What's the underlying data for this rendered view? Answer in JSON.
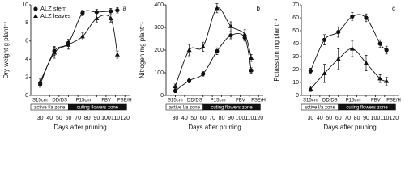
{
  "chart_data": [
    {
      "type": "line",
      "panel_label": "a",
      "y_label": "Dry weight g plant⁻¹",
      "x_label": "Days after pruning",
      "x": [
        30,
        45,
        60,
        75,
        90,
        105,
        112
      ],
      "xlim": [
        20,
        125
      ],
      "xticks": [
        30,
        40,
        50,
        60,
        70,
        80,
        90,
        100,
        110,
        120
      ],
      "ylim": [
        0,
        10
      ],
      "yticks": [
        0,
        2,
        4,
        6,
        8,
        10
      ],
      "legend": "upper left",
      "stages": [
        "S15cm",
        "DD/DS",
        "P15cm",
        "FBV",
        "FSE/H"
      ],
      "zones": [
        "active l/a zone",
        "cuting flowers zone"
      ],
      "series": [
        {
          "name": "ALZ stem",
          "marker": "circle",
          "color": "#111111",
          "values": [
            1.2,
            4.9,
            5.8,
            9.1,
            9.2,
            9.3,
            9.4
          ],
          "errors": [
            0.3,
            0.5,
            0.4,
            0.3,
            0.3,
            0.3,
            0.3
          ]
        },
        {
          "name": "ALZ leaves",
          "marker": "triangle",
          "color": "#111111",
          "values": [
            1.5,
            4.7,
            5.6,
            6.5,
            8.5,
            8.5,
            4.5
          ],
          "errors": [
            0.3,
            0.6,
            0.5,
            0.4,
            0.4,
            0.4,
            0.4
          ]
        }
      ]
    },
    {
      "type": "line",
      "panel_label": "b",
      "y_label": "Nitrogen mg plant⁻¹",
      "x_label": "Days after pruning",
      "x": [
        30,
        45,
        60,
        75,
        90,
        105,
        112
      ],
      "xlim": [
        20,
        125
      ],
      "xticks": [
        30,
        40,
        50,
        60,
        70,
        80,
        90,
        100,
        110,
        120
      ],
      "ylim": [
        0,
        400
      ],
      "yticks": [
        0,
        100,
        200,
        300,
        400
      ],
      "stages": [
        "S15cm",
        "DD/DS",
        "P15cm",
        "FBV",
        "FSE/H"
      ],
      "zones": [
        "active l/a zone",
        "cuting flowers zone"
      ],
      "series": [
        {
          "marker": "circle",
          "color": "#111111",
          "values": [
            20,
            65,
            95,
            195,
            265,
            255,
            110
          ],
          "errors": [
            8,
            10,
            10,
            15,
            15,
            15,
            12
          ]
        },
        {
          "marker": "triangle",
          "color": "#111111",
          "values": [
            40,
            200,
            215,
            385,
            305,
            270,
            165
          ],
          "errors": [
            10,
            25,
            20,
            20,
            20,
            20,
            15
          ]
        }
      ]
    },
    {
      "type": "line",
      "panel_label": "c",
      "y_label": "Potassium mg plant⁻¹",
      "x_label": "Days after pruning",
      "x": [
        30,
        45,
        60,
        75,
        90,
        105,
        112
      ],
      "xlim": [
        20,
        125
      ],
      "xticks": [
        30,
        40,
        50,
        60,
        70,
        80,
        90,
        100,
        110,
        120
      ],
      "ylim": [
        0,
        70
      ],
      "yticks": [
        0,
        10,
        20,
        30,
        40,
        50,
        60,
        70
      ],
      "stages": [
        "S15cm",
        "DD/DS",
        "P15cm",
        "FBV",
        "FSE/H"
      ],
      "zones": [
        "active l/a zone",
        "cuting flowers zone"
      ],
      "series": [
        {
          "marker": "circle",
          "color": "#111111",
          "values": [
            19,
            43,
            49,
            61,
            60,
            40,
            35
          ],
          "errors": [
            2,
            4,
            4,
            3,
            3,
            3,
            3
          ]
        },
        {
          "marker": "triangle",
          "color": "#111111",
          "values": [
            5,
            17,
            28,
            36,
            25,
            13,
            11
          ],
          "errors": [
            2,
            7,
            8,
            6,
            6,
            3,
            3
          ]
        }
      ]
    }
  ]
}
